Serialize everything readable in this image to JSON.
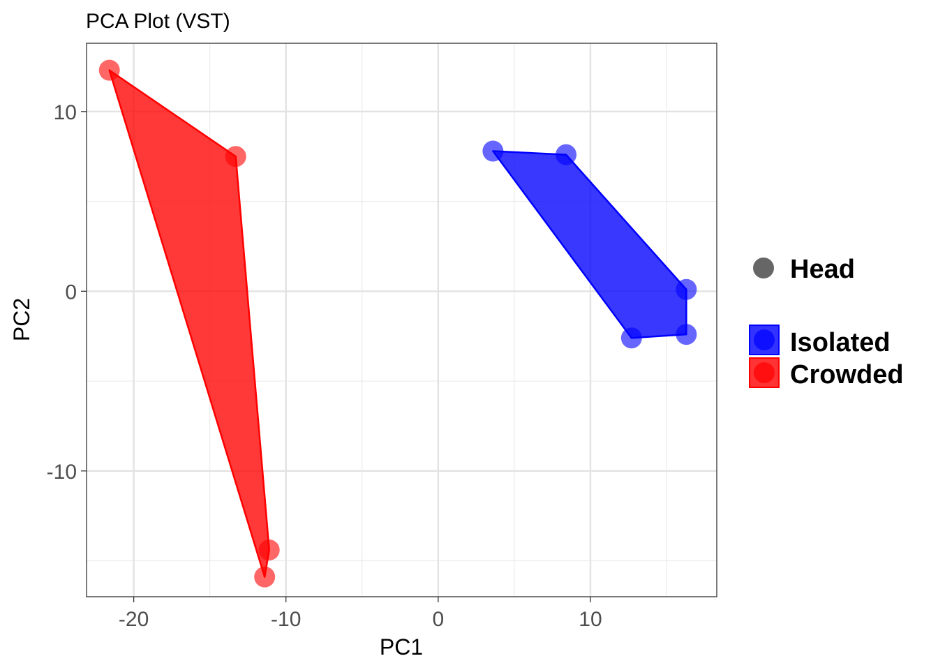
{
  "chart_data": {
    "type": "scatter",
    "title": "PCA Plot (VST)",
    "xlabel": "PC1",
    "ylabel": "PC2",
    "xlim": [
      -23.1,
      18.3
    ],
    "ylim": [
      -17.0,
      13.8
    ],
    "x_ticks": [
      -20,
      -10,
      0,
      10
    ],
    "x_tick_labels": [
      "-20",
      "-10",
      "0",
      "10"
    ],
    "y_ticks": [
      -10,
      0,
      10
    ],
    "y_tick_labels": [
      "-10",
      "0",
      "10"
    ],
    "grid": true,
    "legend_position": "right",
    "shape_legend": {
      "label": "Head",
      "color": "#666666"
    },
    "series": [
      {
        "name": "Isolated",
        "color": "#0000ff",
        "points": [
          {
            "x": 3.6,
            "y": 7.8
          },
          {
            "x": 8.4,
            "y": 7.6
          },
          {
            "x": 16.3,
            "y": 0.1
          },
          {
            "x": 16.3,
            "y": -2.4
          },
          {
            "x": 12.7,
            "y": -2.6
          }
        ]
      },
      {
        "name": "Crowded",
        "color": "#ff0000",
        "points": [
          {
            "x": -21.6,
            "y": 12.3
          },
          {
            "x": -13.3,
            "y": 7.5
          },
          {
            "x": -11.1,
            "y": -14.4
          },
          {
            "x": -11.4,
            "y": -15.9
          }
        ]
      }
    ]
  }
}
